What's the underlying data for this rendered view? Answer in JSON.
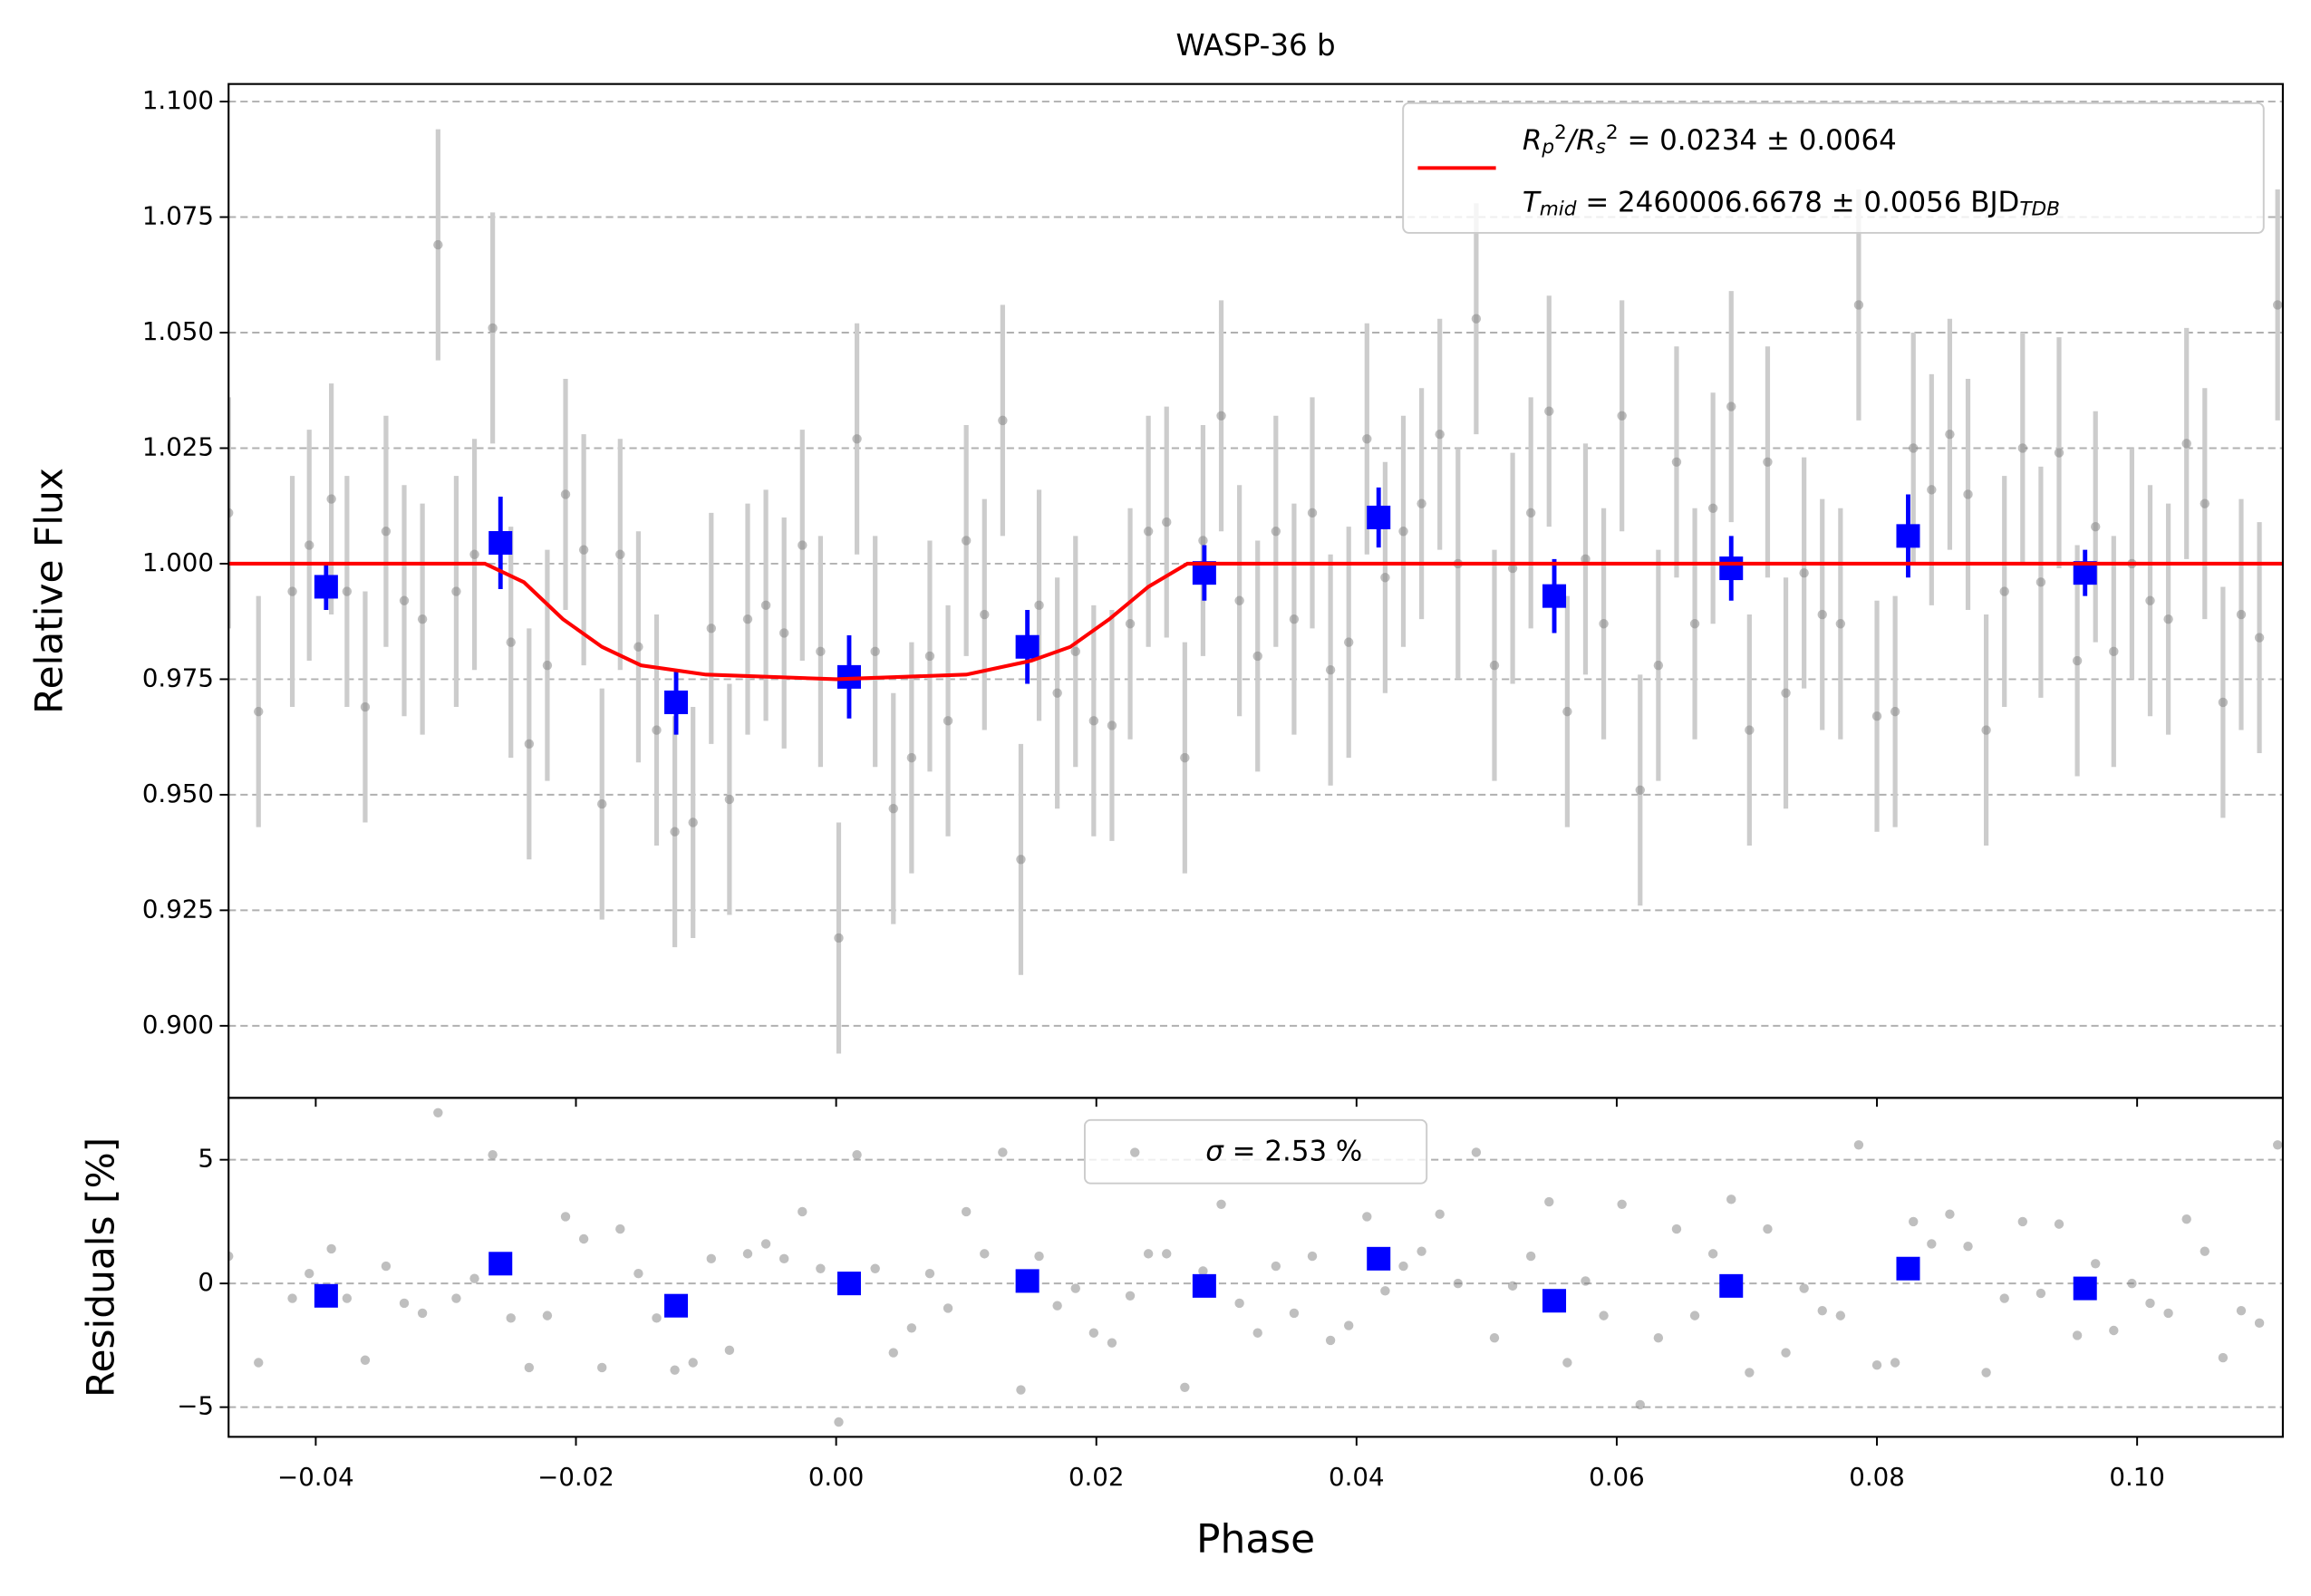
{
  "chart_data": [
    {
      "type": "scatter",
      "title": "WASP-36 b",
      "ylabel": "Relative Flux",
      "xlim": [
        -0.0467,
        0.1112
      ],
      "ylim": [
        0.8844,
        1.1038
      ],
      "xticks": [
        -0.04,
        -0.02,
        0,
        0.02,
        0.04,
        0.06,
        0.08,
        0.1
      ],
      "yticks": [
        {
          "value": 0.9,
          "label": "0.900"
        },
        0.925,
        {
          "value": 0.95,
          "label": "0.950"
        },
        0.975,
        {
          "value": 1.0,
          "label": "1.000"
        },
        1.025,
        {
          "value": 1.05,
          "label": "1.050"
        },
        1.075,
        {
          "value": 1.1,
          "label": "1.100"
        }
      ],
      "grid": true,
      "series": [
        {
          "color": "#808080",
          "error_color": "#cccccc",
          "error": 0.025,
          "x": [
            -0.0467,
            -0.0444,
            -0.0418,
            -0.0405,
            -0.0388,
            -0.0376,
            -0.0362,
            -0.0346,
            -0.0332,
            -0.0318,
            -0.0306,
            -0.0292,
            -0.0278,
            -0.0264,
            -0.025,
            -0.0236,
            -0.0222,
            -0.0208,
            -0.0194,
            -0.018,
            -0.0166,
            -0.0152,
            -0.0138,
            -0.0124,
            -0.011,
            -0.0096,
            -0.0082,
            -0.0068,
            -0.0054,
            -0.004,
            -0.0026,
            -0.0012,
            0.0002,
            0.0016,
            0.003,
            0.0044,
            0.0058,
            0.0072,
            0.0086,
            0.01,
            0.0114,
            0.0128,
            0.0142,
            0.0156,
            0.017,
            0.0184,
            0.0198,
            0.0212,
            0.0226,
            0.024,
            0.0254,
            0.0268,
            0.0282,
            0.0296,
            0.031,
            0.0324,
            0.0338,
            0.0352,
            0.0366,
            0.038,
            0.0394,
            0.0408,
            0.0422,
            0.0436,
            0.045,
            0.0464,
            0.0478,
            0.0492,
            0.0506,
            0.052,
            0.0534,
            0.0548,
            0.0562,
            0.0576,
            0.059,
            0.0604,
            0.0618,
            0.0632,
            0.0646,
            0.066,
            0.0674,
            0.0688,
            0.0702,
            0.0716,
            0.073,
            0.0744,
            0.0758,
            0.0772,
            0.0786,
            0.08,
            0.0814,
            0.0828,
            0.0842,
            0.0856,
            0.087,
            0.0884,
            0.0898,
            0.0912,
            0.0926,
            0.094,
            0.0954,
            0.0968,
            0.0982,
            0.0996,
            0.101,
            0.1024,
            0.1038,
            0.1052,
            0.1066,
            0.108,
            0.1094,
            0.1108
          ],
          "values": [
            1.011,
            0.968,
            0.994,
            1.004,
            1.014,
            0.994,
            0.969,
            1.007,
            0.992,
            0.988,
            1.069,
            0.994,
            1.002,
            1.051,
            0.983,
            0.961,
            0.978,
            1.015,
            1.003,
            0.948,
            1.002,
            0.982,
            0.964,
            0.942,
            0.944,
            0.986,
            0.949,
            0.988,
            0.991,
            0.985,
            1.004,
            0.981,
            0.919,
            1.027,
            0.981,
            0.947,
            0.958,
            0.98,
            0.966,
            1.005,
            0.989,
            1.031,
            0.936,
            0.991,
            0.972,
            0.981,
            0.966,
            0.965,
            0.987,
            1.007,
            1.009,
            0.958,
            1.005,
            1.032,
            0.992,
            0.98,
            1.007,
            0.988,
            1.011,
            0.977,
            0.983,
            1.027,
            0.997,
            1.007,
            1.013,
            1.028,
            1.0,
            1.053,
            0.978,
            0.999,
            1.011,
            1.033,
            0.968,
            1.001,
            0.987,
            1.032,
            0.951,
            0.978,
            1.022,
            0.987,
            1.012,
            1.034,
            0.964,
            1.022,
            0.972,
            0.998,
            0.989,
            0.987,
            1.056,
            0.967,
            0.968,
            1.025,
            1.016,
            1.028,
            1.015,
            0.964,
            0.994,
            1.025,
            0.996,
            1.024,
            0.979,
            1.008,
            0.981,
            1.0,
            0.992,
            0.988,
            1.026,
            1.013,
            0.97,
            0.989,
            0.984,
            1.056
          ]
        },
        {
          "color": "#0000ff",
          "x": [
            -0.0392,
            -0.0258,
            -0.0123,
            0.001,
            0.0147,
            0.0283,
            0.0417,
            0.0552,
            0.0688,
            0.0824,
            0.096
          ],
          "values": [
            0.995,
            1.0045,
            0.97,
            0.9755,
            0.982,
            0.998,
            1.01,
            0.993,
            0.999,
            1.006,
            0.998
          ],
          "errors": [
            0.005,
            0.01,
            0.007,
            0.009,
            0.008,
            0.006,
            0.0065,
            0.008,
            0.007,
            0.009,
            0.005
          ]
        },
        {
          "type": "line",
          "color": "#ff0000",
          "x": [
            -0.0467,
            -0.027,
            -0.024,
            -0.021,
            -0.018,
            -0.015,
            -0.01,
            0,
            0.01,
            0.015,
            0.018,
            0.021,
            0.024,
            0.027,
            0.1112
          ],
          "values": [
            1,
            1,
            0.996,
            0.988,
            0.982,
            0.978,
            0.976,
            0.975,
            0.976,
            0.979,
            0.982,
            0.988,
            0.995,
            1,
            1
          ]
        }
      ],
      "legend": {
        "loc": "upper right",
        "lines": [
          [
            {
              "text": "R",
              "italic": true
            },
            {
              "text": "p",
              "italic": true,
              "script": "sub"
            },
            {
              "text": "2",
              "script": "sup"
            },
            {
              "text": "/R",
              "italic": true
            },
            {
              "text": "s",
              "italic": true,
              "script": "sub"
            },
            {
              "text": "2",
              "script": "sup"
            },
            " = 0.0234 ± 0.0064"
          ],
          [
            {
              "text": "T",
              "italic": true
            },
            {
              "text": "mid",
              "italic": true,
              "script": "sub"
            },
            " = 2460006.6678 ± 0.0056 BJD",
            {
              "text": "TDB",
              "italic": true,
              "script": "sub"
            }
          ]
        ]
      }
    },
    {
      "type": "scatter",
      "xlabel": "Phase",
      "ylabel": "Residuals [%]",
      "xlim": [
        -0.0467,
        0.1112
      ],
      "ylim": [
        -6.2,
        7.5
      ],
      "xticks": [
        {
          "value": -0.04,
          "label": "−0.04"
        },
        {
          "value": -0.02,
          "label": "−0.02"
        },
        {
          "value": 0,
          "label": "0.00"
        },
        0.02,
        0.04,
        0.06,
        0.08,
        {
          "value": 0.1,
          "label": "0.10"
        }
      ],
      "yticks": [
        {
          "value": -5,
          "label": "−5"
        },
        0,
        5
      ],
      "grid": true,
      "series": [
        {
          "color": "#808080",
          "x": [
            -0.0467,
            -0.0444,
            -0.0418,
            -0.0405,
            -0.0388,
            -0.0376,
            -0.0362,
            -0.0346,
            -0.0332,
            -0.0318,
            -0.0306,
            -0.0292,
            -0.0278,
            -0.0264,
            -0.025,
            -0.0236,
            -0.0222,
            -0.0208,
            -0.0194,
            -0.018,
            -0.0166,
            -0.0152,
            -0.0138,
            -0.0124,
            -0.011,
            -0.0096,
            -0.0082,
            -0.0068,
            -0.0054,
            -0.004,
            -0.0026,
            -0.0012,
            0.0002,
            0.0016,
            0.003,
            0.0044,
            0.0058,
            0.0072,
            0.0086,
            0.01,
            0.0114,
            0.0128,
            0.0142,
            0.0156,
            0.017,
            0.0184,
            0.0198,
            0.0212,
            0.0226,
            0.024,
            0.0254,
            0.0268,
            0.0282,
            0.0296,
            0.031,
            0.0324,
            0.0338,
            0.0352,
            0.0366,
            0.038,
            0.0394,
            0.0408,
            0.0422,
            0.0436,
            0.045,
            0.0464,
            0.0478,
            0.0492,
            0.0506,
            0.052,
            0.0534,
            0.0548,
            0.0562,
            0.0576,
            0.059,
            0.0604,
            0.0618,
            0.0632,
            0.0646,
            0.066,
            0.0674,
            0.0688,
            0.0702,
            0.0716,
            0.073,
            0.0744,
            0.0758,
            0.0772,
            0.0786,
            0.08,
            0.0814,
            0.0828,
            0.0842,
            0.0856,
            0.087,
            0.0884,
            0.0898,
            0.0912,
            0.0926,
            0.094,
            0.0954,
            0.0968,
            0.0982,
            0.0996,
            0.101,
            0.1024,
            0.1038,
            0.1052,
            0.1066,
            0.108,
            0.1094,
            0.1108
          ],
          "values": [
            1.1,
            -3.2,
            -0.6,
            0.4,
            1.4,
            -0.6,
            -3.1,
            0.7,
            -0.8,
            -1.2,
            6.9,
            -0.6,
            0.2,
            5.2,
            -1.4,
            -3.4,
            -1.3,
            2.7,
            1.8,
            -3.4,
            2.2,
            0.4,
            -1.4,
            -3.5,
            -3.2,
            1.0,
            -2.7,
            1.2,
            1.6,
            1.0,
            2.9,
            0.6,
            -5.6,
            5.2,
            0.6,
            -2.8,
            -1.8,
            0.4,
            -1.0,
            2.9,
            1.2,
            5.3,
            -4.3,
            1.1,
            -0.9,
            -0.2,
            -2.0,
            -2.4,
            -0.5,
            1.2,
            1.2,
            -4.2,
            0.5,
            3.2,
            -0.8,
            -2.0,
            0.7,
            -1.2,
            1.1,
            -2.3,
            -1.7,
            2.7,
            -0.3,
            0.7,
            1.3,
            2.8,
            0,
            5.3,
            -2.2,
            -0.1,
            1.1,
            3.3,
            -3.2,
            0.1,
            -1.3,
            3.2,
            -4.9,
            -2.2,
            2.2,
            -1.3,
            1.2,
            3.4,
            -3.6,
            2.2,
            -2.8,
            -0.2,
            -1.1,
            -1.3,
            5.6,
            -3.3,
            -3.2,
            2.5,
            1.6,
            2.8,
            1.5,
            -3.6,
            -0.6,
            2.5,
            -0.4,
            2.4,
            -2.1,
            0.8,
            -1.9,
            0,
            -0.8,
            -1.2,
            2.6,
            1.3,
            -3.0,
            -1.1,
            -1.6,
            5.6
          ]
        },
        {
          "color": "#0000ff",
          "x": [
            -0.0392,
            -0.0258,
            -0.0123,
            0.001,
            0.0147,
            0.0283,
            0.0417,
            0.0552,
            0.0688,
            0.0824,
            0.096
          ],
          "values": [
            -0.5,
            0.8,
            -0.9,
            0,
            0.1,
            -0.1,
            1.0,
            -0.7,
            -0.1,
            0.6,
            -0.2
          ]
        }
      ],
      "legend": {
        "loc": "upper center",
        "lines": [
          [
            {
              "text": "σ",
              "italic": true
            },
            " = 2.53 %"
          ]
        ]
      }
    }
  ]
}
